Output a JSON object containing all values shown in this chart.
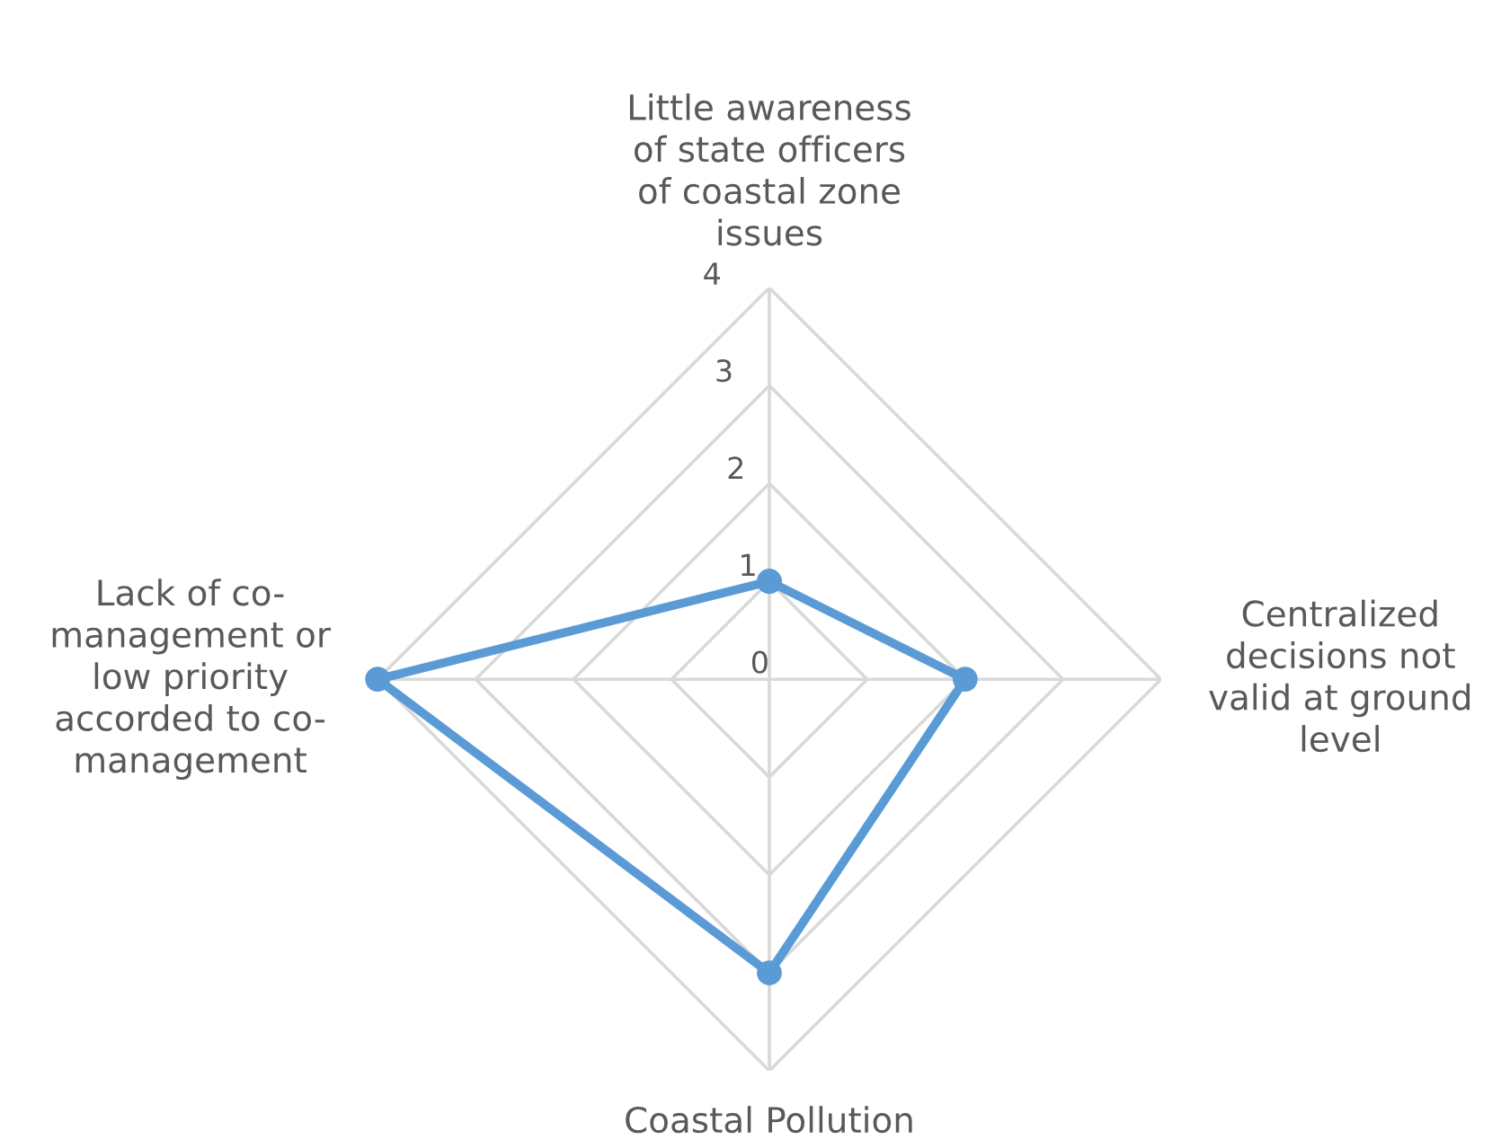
{
  "chart_data": {
    "type": "radar",
    "categories": [
      "Little awareness\nof state officers\nof coastal zone\nissues",
      "Centralized\ndecisions not\nvalid at ground\nlevel",
      "Coastal Pollution",
      "Lack of co-\nmanagement or\nlow priority\naccorded to co-\nmanagement"
    ],
    "series": [
      {
        "color": "#5b9bd5",
        "values": [
          1,
          2,
          3,
          4
        ]
      }
    ],
    "ylim": [
      0,
      4
    ],
    "yticks": [
      0,
      1,
      2,
      3,
      4
    ],
    "grid": true,
    "marker": "circle",
    "line_style": "solid"
  }
}
